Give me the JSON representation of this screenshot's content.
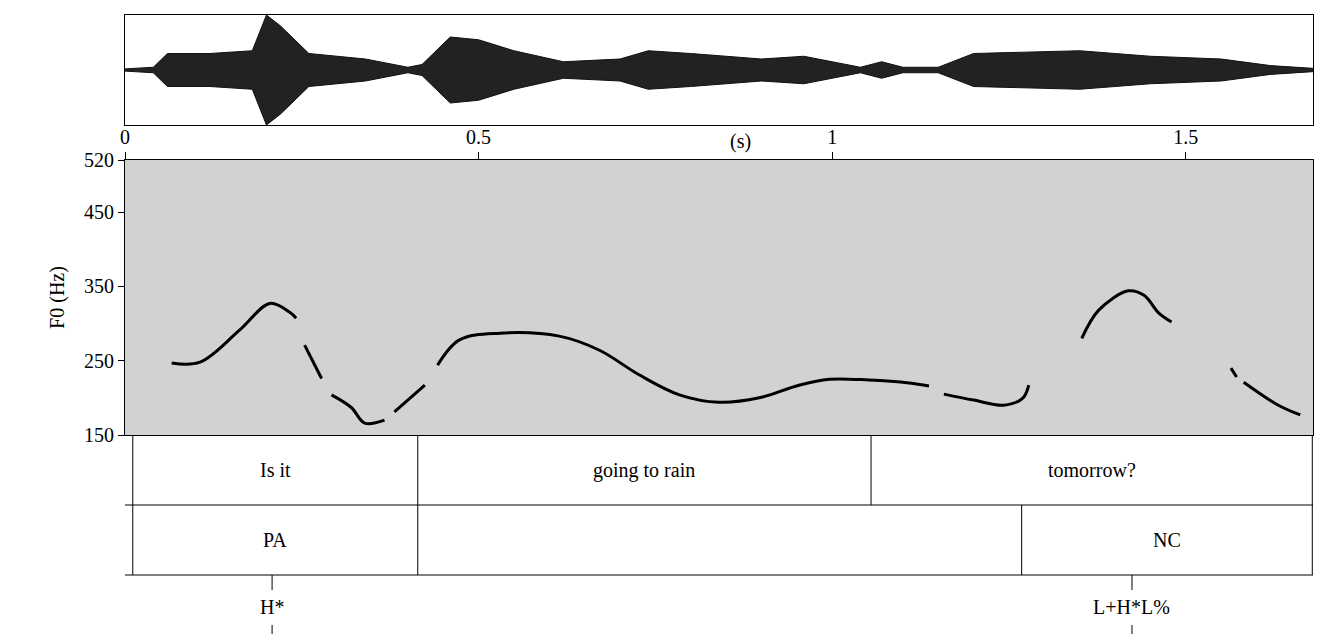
{
  "chart_data": {
    "type": "line",
    "x_label": "(s)",
    "y_label": "F0 (Hz)",
    "xlim": [
      0,
      1.68
    ],
    "xticks": [
      0,
      0.5,
      1,
      1.5
    ],
    "ylim": [
      150,
      520
    ],
    "yticks": [
      150,
      250,
      350,
      450,
      520
    ],
    "series": [
      {
        "color": "#000000",
        "x": [
          0.066,
          0.106,
          0.162,
          0.205,
          0.233,
          0.242,
          0.248,
          0.254,
          0.278,
          0.285,
          0.292,
          0.32,
          0.339,
          0.367,
          0.374,
          0.381,
          0.424,
          0.433,
          0.442,
          0.473,
          0.53,
          0.614,
          0.671,
          0.727,
          0.784,
          0.84,
          0.897,
          0.953,
          0.996,
          1.052,
          1.109,
          1.137,
          1.148,
          1.158,
          1.2,
          1.243,
          1.27,
          1.278,
          1.315,
          1.353,
          1.377,
          1.419,
          1.441,
          1.462,
          1.48,
          1.52,
          1.564,
          1.572,
          1.577,
          1.582,
          1.631,
          1.662
        ],
        "values": [
          247,
          248,
          291,
          327,
          315,
          307,
          null,
          271,
          226,
          null,
          204,
          187,
          166,
          170,
          null,
          181,
          217,
          null,
          244,
          278,
          287,
          283,
          264,
          231,
          204,
          194,
          200,
          217,
          225,
          224,
          220,
          216,
          null,
          205,
          197,
          190,
          200,
          217,
          null,
          280,
          318,
          344,
          338,
          314,
          302,
          null,
          240,
          228,
          null,
          221,
          190,
          177
        ]
      }
    ],
    "waveform": {
      "x": [
        0,
        0.04,
        0.06,
        0.12,
        0.18,
        0.2,
        0.22,
        0.26,
        0.34,
        0.4,
        0.42,
        0.46,
        0.5,
        0.55,
        0.62,
        0.7,
        0.74,
        0.8,
        0.9,
        0.96,
        1.0,
        1.04,
        1.07,
        1.1,
        1.15,
        1.2,
        1.35,
        1.45,
        1.55,
        1.62,
        1.68
      ],
      "values": [
        0.02,
        0.05,
        0.3,
        0.3,
        0.35,
        1.0,
        0.8,
        0.3,
        0.2,
        0.05,
        0.1,
        0.6,
        0.55,
        0.35,
        0.15,
        0.2,
        0.35,
        0.3,
        0.2,
        0.25,
        0.15,
        0.05,
        0.15,
        0.05,
        0.05,
        0.3,
        0.35,
        0.25,
        0.2,
        0.08,
        0.03
      ],
      "ylim": [
        -1,
        1
      ]
    },
    "tiers": [
      {
        "boundaries": [
          0.011,
          0.414,
          1.055,
          1.679
        ],
        "labels": [
          "Is it",
          "going to rain",
          "tomorrow?"
        ]
      },
      {
        "boundaries": [
          0.011,
          0.414,
          1.268,
          1.679
        ],
        "labels": [
          "PA",
          null,
          "NC"
        ]
      },
      {
        "times": [
          0.208,
          1.424
        ],
        "labels": [
          "H*",
          "L+H*L%"
        ]
      }
    ]
  }
}
